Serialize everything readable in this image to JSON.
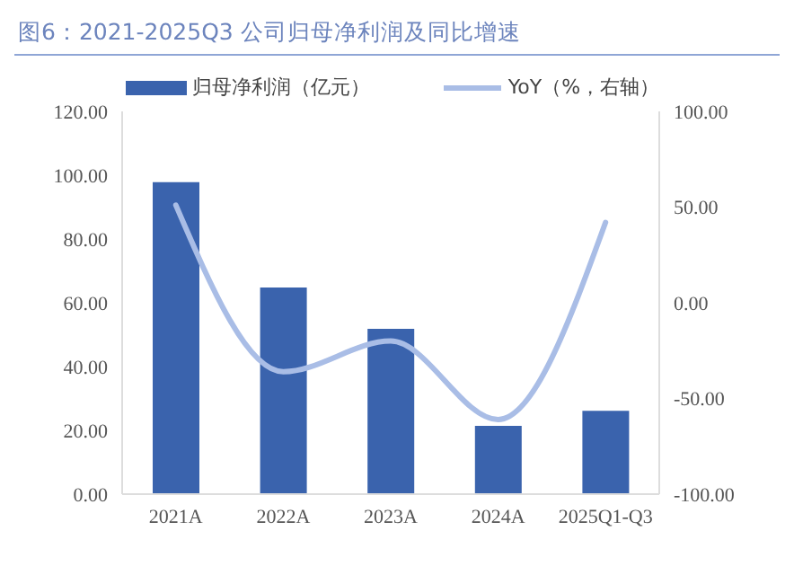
{
  "chart_data": {
    "type": "bar",
    "title": "图6：2021-2025Q3 公司归母净利润及同比增速",
    "categories": [
      "2021A",
      "2022A",
      "2023A",
      "2024A",
      "2025Q1-Q3"
    ],
    "series": [
      {
        "name": "归母净利润（亿元）",
        "color": "#3a63ad",
        "values": [
          97.8,
          64.8,
          51.8,
          21.4,
          26.1
        ]
      },
      {
        "name": "YoY（%，右轴）",
        "type": "line",
        "axis": "y2",
        "color": "#a9bde6",
        "values": [
          51,
          -36,
          -20,
          -61,
          42
        ]
      }
    ],
    "ylim": [
      0,
      120
    ],
    "yticks": [
      {
        "value": 0,
        "label": "0.00"
      },
      {
        "value": 20,
        "label": "20.00"
      },
      {
        "value": 40,
        "label": "40.00"
      },
      {
        "value": 60,
        "label": "60.00"
      },
      {
        "value": 80,
        "label": "80.00"
      },
      {
        "value": 100,
        "label": "100.00"
      },
      {
        "value": 120,
        "label": "120.00"
      }
    ],
    "y2lim": [
      -100,
      100
    ],
    "y2ticks": [
      {
        "value": -100,
        "label": "-100.00"
      },
      {
        "value": -50,
        "label": "-50.00"
      },
      {
        "value": 0,
        "label": "0.00"
      },
      {
        "value": 50,
        "label": "50.00"
      },
      {
        "value": 100,
        "label": "100.00"
      }
    ],
    "grid": false,
    "legend": "top"
  }
}
